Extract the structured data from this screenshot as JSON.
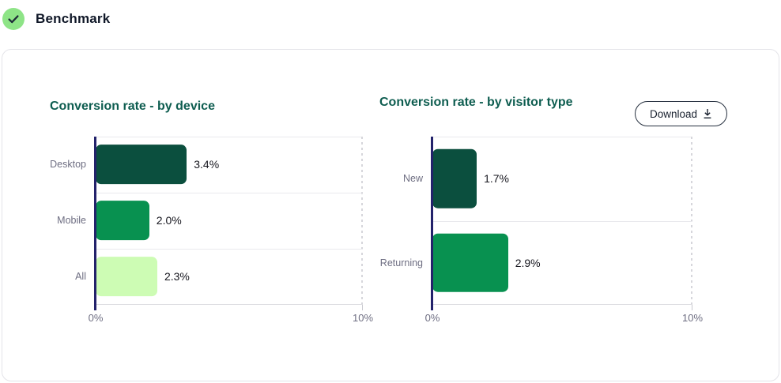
{
  "header": {
    "title": "Benchmark"
  },
  "download_button": {
    "label": "Download",
    "icon": "download-arrow-to-bar"
  },
  "colors": {
    "title_color": "#0e5d50",
    "axis_line": "#23226b",
    "grid_line": "#e9e9ed",
    "dashed_line": "#d6d6db",
    "tick_label": "#6e6e82",
    "category_label": "#6e6e82",
    "value_label": "#16161e",
    "card_border": "#e4e4e9",
    "header_text": "#101828",
    "check_bg": "#8ee487",
    "check_mark": "#1e2a38",
    "button_border": "#26303f",
    "button_text": "#18202e"
  },
  "chart_data": [
    {
      "type": "bar",
      "orientation": "horizontal",
      "title": "Conversion rate - by device",
      "categories": [
        "Desktop",
        "Mobile",
        "All"
      ],
      "values": [
        3.4,
        2.0,
        2.3
      ],
      "value_labels": [
        "3.4%",
        "2.0%",
        "2.3%"
      ],
      "bar_colors": [
        "#0b4f3e",
        "#089150",
        "#cdfcb4"
      ],
      "xlim": [
        0,
        10
      ],
      "x_tick_labels": [
        "0%",
        "10%"
      ],
      "xlabel": "",
      "ylabel": "",
      "grid": "row-separators-plus-right-dashed-line",
      "legend": "none"
    },
    {
      "type": "bar",
      "orientation": "horizontal",
      "title": "Conversion rate - by visitor type",
      "categories": [
        "New",
        "Returning"
      ],
      "values": [
        1.7,
        2.9
      ],
      "value_labels": [
        "1.7%",
        "2.9%"
      ],
      "bar_colors": [
        "#0b4f3e",
        "#089150"
      ],
      "xlim": [
        0,
        10
      ],
      "x_tick_labels": [
        "0%",
        "10%"
      ],
      "xlabel": "",
      "ylabel": "",
      "grid": "row-separators-plus-right-dashed-line",
      "legend": "none"
    }
  ]
}
